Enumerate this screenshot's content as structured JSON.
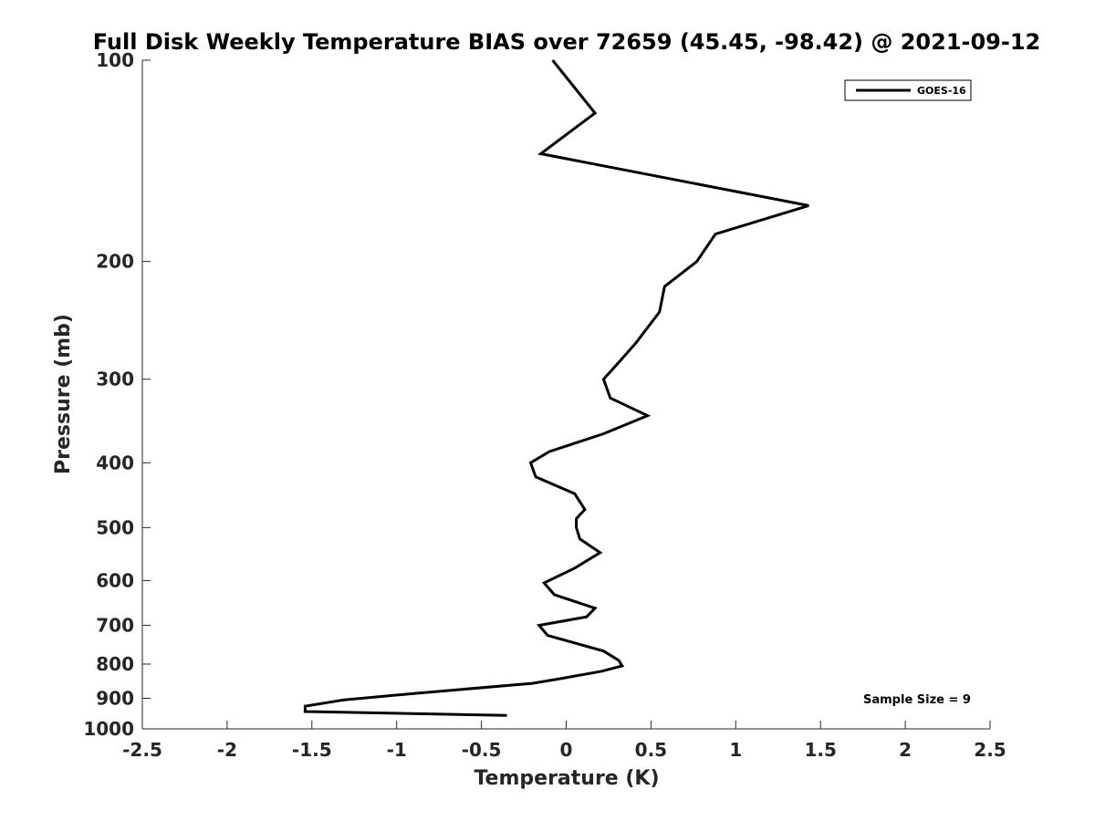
{
  "chart_data": {
    "type": "line",
    "title": "Full Disk Weekly Temperature BIAS over 72659 (45.45, -98.42) @ 2021-09-12",
    "xlabel": "Temperature (K)",
    "ylabel": "Pressure (mb)",
    "xlim": [
      -2.5,
      2.5
    ],
    "ylim": [
      100,
      1000
    ],
    "y_scale": "log",
    "y_reversed": true,
    "x_ticks": [
      "-2.5",
      "-2",
      "-1.5",
      "-1",
      "-0.5",
      "0",
      "0.5",
      "1",
      "1.5",
      "2",
      "2.5"
    ],
    "x_tick_values": [
      -2.5,
      -2,
      -1.5,
      -1,
      -0.5,
      0,
      0.5,
      1,
      1.5,
      2,
      2.5
    ],
    "y_ticks": [
      "100",
      "200",
      "300",
      "400",
      "500",
      "600",
      "700",
      "800",
      "900",
      "1000"
    ],
    "y_tick_values": [
      100,
      200,
      300,
      400,
      500,
      600,
      700,
      800,
      900,
      1000
    ],
    "grid": false,
    "legend_position": "top-right",
    "series": [
      {
        "name": "GOES-16",
        "color": "#000000",
        "points": [
          [
            -0.08,
            100
          ],
          [
            0.17,
            120
          ],
          [
            -0.15,
            138
          ],
          [
            1.43,
            165
          ],
          [
            0.88,
            182
          ],
          [
            0.77,
            200
          ],
          [
            0.58,
            218
          ],
          [
            0.55,
            238
          ],
          [
            0.41,
            265
          ],
          [
            0.3,
            285
          ],
          [
            0.22,
            300
          ],
          [
            0.26,
            320
          ],
          [
            0.48,
            340
          ],
          [
            0.22,
            362
          ],
          [
            -0.1,
            385
          ],
          [
            -0.21,
            400
          ],
          [
            -0.18,
            420
          ],
          [
            0.05,
            445
          ],
          [
            0.11,
            470
          ],
          [
            0.06,
            485
          ],
          [
            0.06,
            500
          ],
          [
            0.08,
            520
          ],
          [
            0.2,
            545
          ],
          [
            0.05,
            575
          ],
          [
            -0.13,
            605
          ],
          [
            -0.07,
            630
          ],
          [
            0.17,
            660
          ],
          [
            0.12,
            680
          ],
          [
            -0.16,
            700
          ],
          [
            -0.11,
            725
          ],
          [
            0.22,
            765
          ],
          [
            0.31,
            790
          ],
          [
            0.33,
            805
          ],
          [
            0.21,
            820
          ],
          [
            -0.02,
            840
          ],
          [
            -0.2,
            855
          ],
          [
            -0.89,
            885
          ],
          [
            -1.31,
            905
          ],
          [
            -1.54,
            925
          ],
          [
            -1.54,
            942
          ],
          [
            -0.35,
            955
          ]
        ]
      }
    ],
    "annotations": [
      "Sample Size = 9"
    ]
  }
}
